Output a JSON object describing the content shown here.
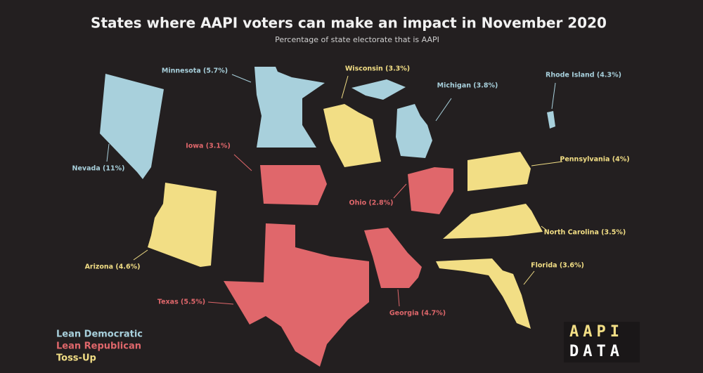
{
  "title": "States where AAPI voters can make an impact in November 2020",
  "subtitle": "Percentage of state electorate that is AAPI",
  "groups": [
    {
      "name": "Lean Democratic",
      "color": "#a8d0dc",
      "states": [
        "Nevada (11%)",
        "Minnesota (5.7%)",
        "Michigan (3.8%)",
        "Rhode Island (4.3%)"
      ]
    },
    {
      "name": "Lean Republican",
      "color": "#e0676b",
      "states": [
        "Iowa (3.1%)",
        "Ohio (2.8%)",
        "Texas (5.5%)",
        "Georgia (4.7%)"
      ]
    },
    {
      "name": "Toss-Up",
      "color": "#f2de85",
      "states": [
        "Wisconsin (3.3%)",
        "Pennsylvania (4%)",
        "North Carolina (3.5%)",
        "Arizona (4.6%)",
        "Florida (3.6%)"
      ]
    }
  ],
  "logo": [
    "AAPI",
    "DATA"
  ]
}
